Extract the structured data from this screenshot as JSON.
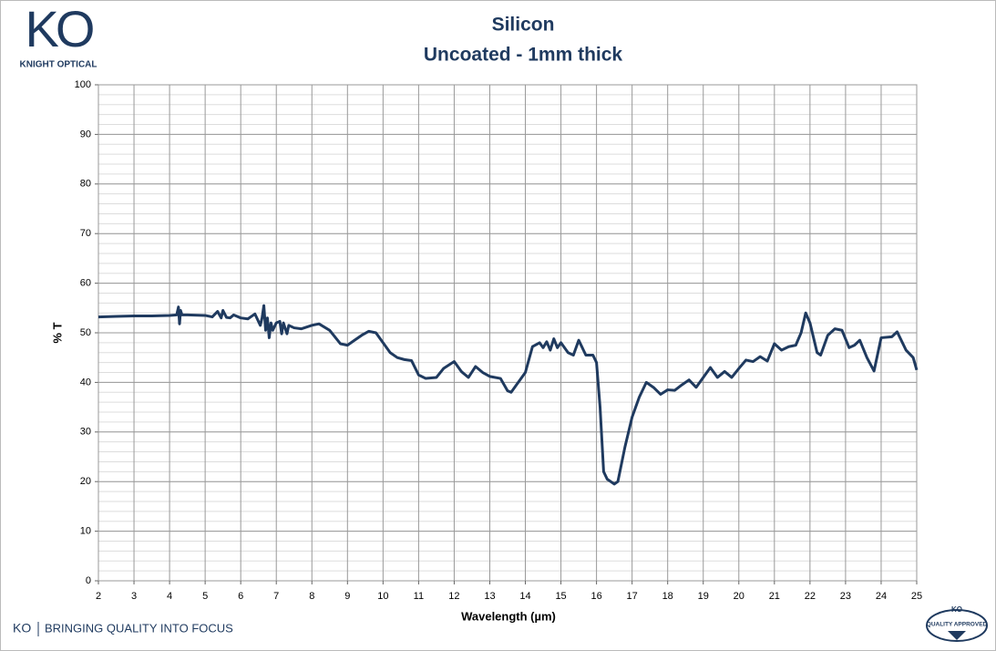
{
  "chart_data": {
    "type": "line",
    "title": "Silicon",
    "subtitle": "Uncoated - 1mm thick",
    "x_label": "Wavelength (µm)",
    "y_label": "% T",
    "color": "#1f3a5f",
    "grid": true,
    "y_minor_step": 2,
    "xlim": [
      2,
      25
    ],
    "ylim": [
      0,
      100
    ],
    "xticks": [
      2,
      3,
      4,
      5,
      6,
      7,
      8,
      9,
      10,
      11,
      12,
      13,
      14,
      15,
      16,
      17,
      18,
      19,
      20,
      21,
      22,
      23,
      24,
      25
    ],
    "yticks": [
      0,
      10,
      20,
      30,
      40,
      50,
      60,
      70,
      80,
      90,
      100
    ],
    "x": [
      2.0,
      2.5,
      3.0,
      3.5,
      4.0,
      4.2,
      4.25,
      4.28,
      4.31,
      4.35,
      4.5,
      5.0,
      5.2,
      5.35,
      5.45,
      5.5,
      5.6,
      5.7,
      5.8,
      6.0,
      6.2,
      6.4,
      6.55,
      6.6,
      6.65,
      6.7,
      6.75,
      6.8,
      6.85,
      6.9,
      7.0,
      7.1,
      7.15,
      7.2,
      7.3,
      7.35,
      7.5,
      7.7,
      8.0,
      8.2,
      8.5,
      8.8,
      9.0,
      9.2,
      9.4,
      9.6,
      9.8,
      10.0,
      10.2,
      10.4,
      10.6,
      10.8,
      11.0,
      11.2,
      11.5,
      11.7,
      12.0,
      12.2,
      12.4,
      12.6,
      12.8,
      13.0,
      13.3,
      13.5,
      13.6,
      13.8,
      14.0,
      14.2,
      14.4,
      14.5,
      14.6,
      14.7,
      14.8,
      14.9,
      15.0,
      15.2,
      15.35,
      15.5,
      15.6,
      15.7,
      15.9,
      16.0,
      16.1,
      16.2,
      16.3,
      16.5,
      16.6,
      16.8,
      17.0,
      17.2,
      17.4,
      17.6,
      17.8,
      18.0,
      18.2,
      18.4,
      18.6,
      18.8,
      19.0,
      19.2,
      19.4,
      19.6,
      19.8,
      20.0,
      20.2,
      20.4,
      20.6,
      20.8,
      21.0,
      21.2,
      21.4,
      21.6,
      21.75,
      21.88,
      22.0,
      22.2,
      22.3,
      22.5,
      22.7,
      22.9,
      23.1,
      23.25,
      23.4,
      23.6,
      23.8,
      24.0,
      24.3,
      24.45,
      24.7,
      24.9,
      25.0
    ],
    "values": [
      53.2,
      53.3,
      53.4,
      53.4,
      53.5,
      53.6,
      55.2,
      51.8,
      54.5,
      53.6,
      53.6,
      53.5,
      53.2,
      54.3,
      53.0,
      54.5,
      53.1,
      53.0,
      53.6,
      53.0,
      52.8,
      53.8,
      51.5,
      53.0,
      55.5,
      50.5,
      53.0,
      49.0,
      52.0,
      50.5,
      52.0,
      52.3,
      49.8,
      52.0,
      49.8,
      51.5,
      51.0,
      50.8,
      51.5,
      51.8,
      50.5,
      47.8,
      47.5,
      48.5,
      49.5,
      50.3,
      50.0,
      48.0,
      46.0,
      45.0,
      44.6,
      44.4,
      41.5,
      40.8,
      41.0,
      42.8,
      44.2,
      42.2,
      41.0,
      43.2,
      42.0,
      41.2,
      40.8,
      38.3,
      38.0,
      40.0,
      42.0,
      47.2,
      48.0,
      47.0,
      48.2,
      46.5,
      48.8,
      47.0,
      48.0,
      46.0,
      45.5,
      48.5,
      47.0,
      45.5,
      45.5,
      44.0,
      35.0,
      22.0,
      20.5,
      19.5,
      20.0,
      27.0,
      33.0,
      37.0,
      40.0,
      39.0,
      37.6,
      38.5,
      38.4,
      39.5,
      40.5,
      39.0,
      41.0,
      43.0,
      41.0,
      42.2,
      41.0,
      42.8,
      44.5,
      44.2,
      45.2,
      44.3,
      47.8,
      46.5,
      47.2,
      47.5,
      50.0,
      54.0,
      52.0,
      46.0,
      45.5,
      49.5,
      50.8,
      50.5,
      47.0,
      47.5,
      48.5,
      45.0,
      42.3,
      49.0,
      49.2,
      50.2,
      46.5,
      45.0,
      42.5
    ]
  },
  "branding": {
    "logo": "KO",
    "company": "KNIGHT OPTICAL",
    "footer_logo": "KO",
    "slogan": "BRINGING QUALITY INTO FOCUS",
    "badge_logo": "KO",
    "badge_text": "QUALITY APPROVED"
  }
}
